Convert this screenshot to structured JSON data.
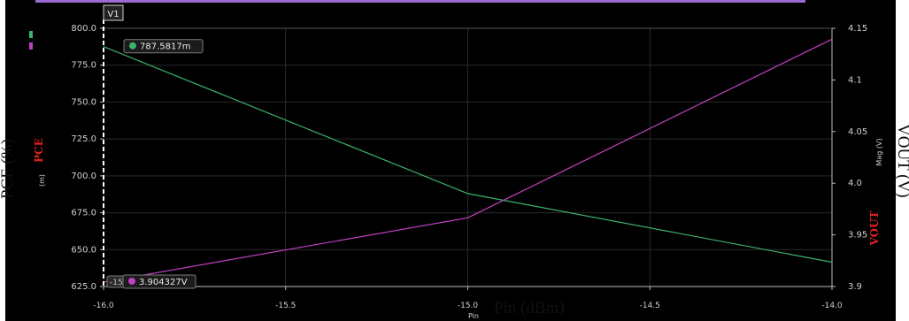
{
  "chart_data": {
    "type": "line",
    "x": [
      -16.0,
      -15.0,
      -14.0
    ],
    "series": [
      {
        "name": "PCE",
        "axis": "left",
        "color": "#3bb36a",
        "values": [
          787.58,
          688.0,
          641.5
        ]
      },
      {
        "name": "VOUT",
        "axis": "right",
        "color": "#c040c0",
        "values": [
          3.9043,
          3.9665,
          4.1395
        ]
      }
    ],
    "xlim": [
      -16.0,
      -14.0
    ],
    "x_ticks": [
      "-16.0",
      "-15.5",
      "-15.0",
      "-14.5",
      "-14.0"
    ],
    "x_tick_values": [
      -16.0,
      -15.5,
      -15.0,
      -14.5,
      -14.0
    ],
    "ylim_left": [
      625.0,
      800.0
    ],
    "y_left_ticks": [
      "625.0",
      "650.0",
      "675.0",
      "700.0",
      "725.0",
      "750.0",
      "775.0",
      "800.0"
    ],
    "y_left_tick_values": [
      625,
      650,
      675,
      700,
      725,
      750,
      775,
      800
    ],
    "ylim_right": [
      3.9,
      4.15
    ],
    "y_right_ticks": [
      "3.9",
      "3.95",
      "4.0",
      "4.05",
      "4.1",
      "4.15"
    ],
    "y_right_tick_values": [
      3.9,
      3.95,
      4.0,
      4.05,
      4.1,
      4.15
    ],
    "grid": true,
    "inner_left_label": "PCE",
    "inner_left_unit": "(m)",
    "inner_right_label": "VOUT",
    "inner_right_unit": "Mag (V)",
    "inner_x_label": "Pin",
    "marker": {
      "name": "V1",
      "x": -16.0,
      "readout_pce": "787.5817m",
      "readout_vout": "3.904327V",
      "readout_x_stub": "-15"
    },
    "outer_labels": {
      "left": "PCE (%)",
      "right": "VOUT (V)",
      "bottom": "Pin (dBm)"
    },
    "colors": {
      "background": "#000000",
      "grid": "#2a2a2a",
      "axis_text": "#d0d0d0",
      "label_red": "#e02020",
      "marker": "#ffffff",
      "top_bar": "#9b6bd0"
    }
  }
}
